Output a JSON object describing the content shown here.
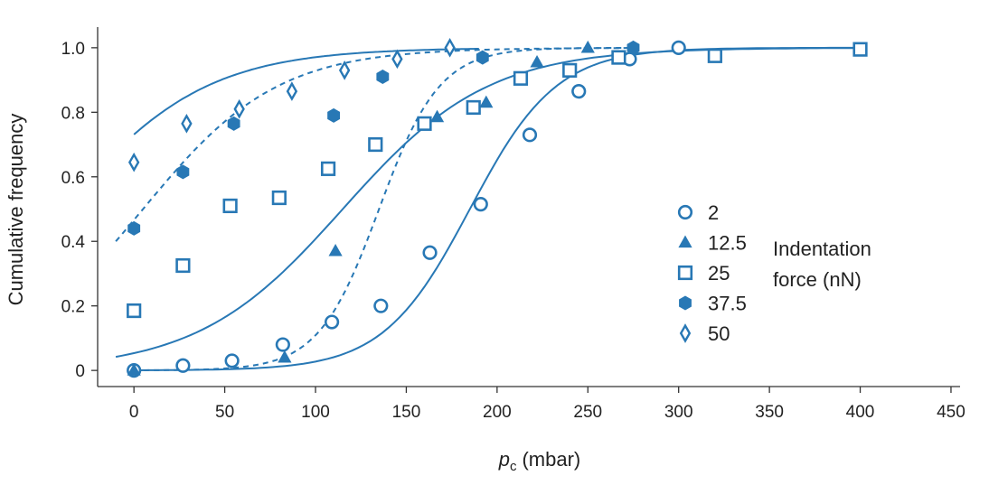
{
  "chart_data": {
    "type": "scatter",
    "title": "",
    "xlabel_main": "p",
    "xlabel_sub": "c",
    "xlabel_unit": "(mbar)",
    "ylabel": "Cumulative frequency",
    "xlim": [
      -20,
      455
    ],
    "ylim": [
      -0.05,
      1.05
    ],
    "xticks": [
      0,
      50,
      100,
      150,
      200,
      250,
      300,
      350,
      400,
      450
    ],
    "yticks": [
      0,
      0.2,
      0.4,
      0.6,
      0.8,
      1.0
    ],
    "ytick_labels": [
      "0",
      "0.2",
      "0.4",
      "0.6",
      "0.8",
      "1.0"
    ],
    "grid": false,
    "legend_position": "right",
    "legend_title_line1": "Indentation",
    "legend_title_line2": "force (nN)",
    "color": "#2878b5",
    "series": [
      {
        "name": "2",
        "marker": "circle",
        "x": [
          0,
          27,
          54,
          82,
          109,
          136,
          163,
          191,
          218,
          245,
          273,
          300
        ],
        "y": [
          0.0,
          0.015,
          0.03,
          0.08,
          0.15,
          0.2,
          0.365,
          0.515,
          0.73,
          0.865,
          0.965,
          1.0
        ],
        "fit": {
          "style": "solid",
          "model": "logistic",
          "x0": 185,
          "k": 0.042,
          "xmin": 0,
          "xmax": 400
        }
      },
      {
        "name": "12.5",
        "marker": "triangle",
        "x": [
          0,
          83,
          111,
          167,
          194,
          222,
          250
        ],
        "y": [
          0.0,
          0.04,
          0.37,
          0.785,
          0.83,
          0.955,
          1.0
        ],
        "fit": {
          "style": "dashed",
          "model": "logistic",
          "x0": 135,
          "k": 0.06,
          "xmin": 0,
          "xmax": 275
        }
      },
      {
        "name": "25",
        "marker": "square",
        "x": [
          0,
          27,
          53,
          80,
          107,
          133,
          160,
          187,
          213,
          240,
          267,
          320,
          400
        ],
        "y": [
          0.185,
          0.325,
          0.51,
          0.535,
          0.625,
          0.7,
          0.765,
          0.815,
          0.905,
          0.93,
          0.97,
          0.975,
          0.995
        ],
        "fit": {
          "style": "solid",
          "model": "logistic",
          "x0": 115,
          "k": 0.025,
          "xmin": -10,
          "xmax": 400
        }
      },
      {
        "name": "37.5",
        "marker": "hexagon",
        "x": [
          0,
          27,
          55,
          110,
          137,
          192,
          275
        ],
        "y": [
          0.44,
          0.615,
          0.765,
          0.79,
          0.91,
          0.97,
          1.0
        ],
        "fit": {
          "style": "dashed",
          "model": "logistic",
          "x0": 5,
          "k": 0.027,
          "xmin": -10,
          "xmax": 275
        }
      },
      {
        "name": "50",
        "marker": "diamond",
        "x": [
          0,
          29,
          58,
          87,
          116,
          145,
          174
        ],
        "y": [
          0.645,
          0.765,
          0.81,
          0.865,
          0.93,
          0.965,
          1.0
        ],
        "fit": {
          "style": "solid",
          "model": "logistic",
          "x0": -40,
          "k": 0.025,
          "xmin": 0,
          "xmax": 190
        }
      }
    ]
  }
}
